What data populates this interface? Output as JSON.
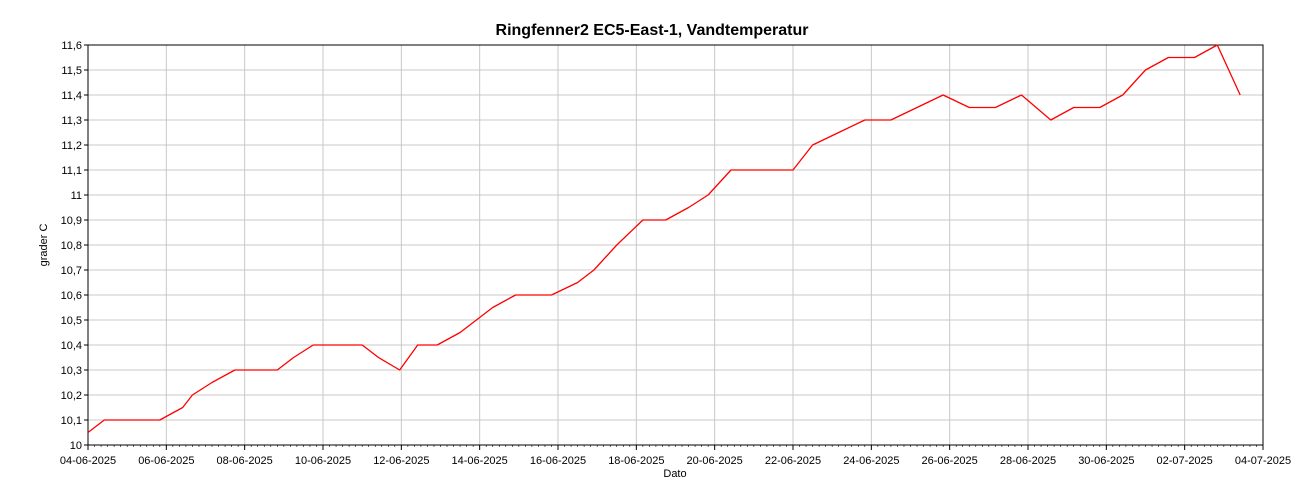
{
  "chart_data": {
    "type": "line",
    "title": "Ringfenner2 EC5-East-1, Vandtemperatur",
    "xlabel": "Dato",
    "ylabel": "grader C",
    "x_ticks": [
      "04-06-2025",
      "06-06-2025",
      "08-06-2025",
      "10-06-2025",
      "12-06-2025",
      "14-06-2025",
      "16-06-2025",
      "18-06-2025",
      "20-06-2025",
      "22-06-2025",
      "24-06-2025",
      "26-06-2025",
      "28-06-2025",
      "30-06-2025",
      "02-07-2025",
      "04-07-2025"
    ],
    "y_ticks": [
      "10",
      "10,1",
      "10,2",
      "10,3",
      "10,4",
      "10,5",
      "10,6",
      "10,7",
      "10,8",
      "10,9",
      "11",
      "11,1",
      "11,2",
      "11,3",
      "11,4",
      "11,5",
      "11,6"
    ],
    "xlim": [
      "2025-06-04",
      "2025-07-04"
    ],
    "ylim": [
      10,
      11.6
    ],
    "grid": true,
    "series": [
      {
        "color": "#ff0000",
        "x": [
          "2025-06-04 00:00",
          "2025-06-04 10:00",
          "2025-06-05 08:00",
          "2025-06-05 20:00",
          "2025-06-06 10:00",
          "2025-06-06 16:00",
          "2025-06-07 04:00",
          "2025-06-07 18:00",
          "2025-06-08 08:00",
          "2025-06-08 20:00",
          "2025-06-09 06:00",
          "2025-06-09 18:00",
          "2025-06-10 12:00",
          "2025-06-11 00:00",
          "2025-06-11 10:00",
          "2025-06-11 23:00",
          "2025-06-12 10:00",
          "2025-06-12 22:00",
          "2025-06-13 12:00",
          "2025-06-13 22:00",
          "2025-06-14 08:00",
          "2025-06-14 22:00",
          "2025-06-15 10:00",
          "2025-06-15 20:00",
          "2025-06-16 12:00",
          "2025-06-16 22:00",
          "2025-06-17 12:00",
          "2025-06-18 04:00",
          "2025-06-18 18:00",
          "2025-06-19 08:00",
          "2025-06-19 20:00",
          "2025-06-20 10:00",
          "2025-06-21 00:00",
          "2025-06-21 12:00",
          "2025-06-22 00:00",
          "2025-06-22 12:00",
          "2025-06-23 04:00",
          "2025-06-23 20:00",
          "2025-06-24 12:00",
          "2025-06-25 04:00",
          "2025-06-25 20:00",
          "2025-06-26 12:00",
          "2025-06-27 04:00",
          "2025-06-27 20:00",
          "2025-06-28 14:00",
          "2025-06-29 04:00",
          "2025-06-29 20:00",
          "2025-06-30 10:00",
          "2025-07-01 00:00",
          "2025-07-01 14:00",
          "2025-07-02 06:00",
          "2025-07-02 20:00",
          "2025-07-03 10:00"
        ],
        "y": [
          10.05,
          10.1,
          10.1,
          10.1,
          10.15,
          10.2,
          10.25,
          10.3,
          10.3,
          10.3,
          10.35,
          10.4,
          10.4,
          10.4,
          10.35,
          10.3,
          10.4,
          10.4,
          10.45,
          10.5,
          10.55,
          10.6,
          10.6,
          10.6,
          10.65,
          10.7,
          10.8,
          10.9,
          10.9,
          10.95,
          11.0,
          11.1,
          11.1,
          11.1,
          11.1,
          11.2,
          11.25,
          11.3,
          11.3,
          11.35,
          11.4,
          11.35,
          11.35,
          11.4,
          11.3,
          11.35,
          11.35,
          11.4,
          11.5,
          11.55,
          11.55,
          11.6,
          11.4
        ]
      }
    ]
  }
}
